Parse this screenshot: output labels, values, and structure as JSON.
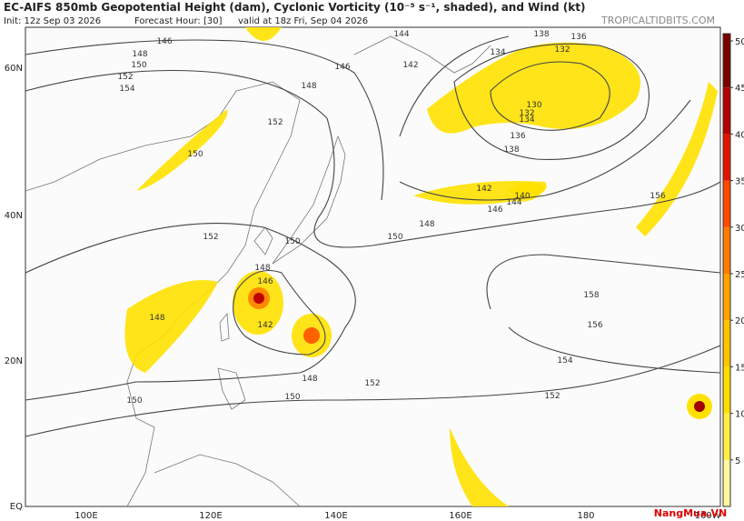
{
  "header": {
    "title": "EC-AIFS 850mb Geopotential Height (dam), Cyclonic Vorticity (10⁻⁵ s⁻¹, shaded), and Wind (kt)",
    "init": "Init: 12z Sep 03 2026",
    "forecast_hour": "Forecast Hour: [30]",
    "valid": "valid at 18z Fri, Sep 04 2026",
    "source": "TROPICALTIDBITS.COM"
  },
  "map": {
    "lat_labels": [
      "60N",
      "40N",
      "20N",
      "EQ"
    ],
    "lon_labels": [
      "100E",
      "120E",
      "140E",
      "160E",
      "180",
      "160W"
    ],
    "contour_labels": [
      146,
      148,
      150,
      152,
      154,
      146,
      148,
      152,
      150,
      152,
      150,
      150,
      148,
      146,
      142,
      148,
      150,
      152,
      144,
      142,
      138,
      136,
      134,
      132,
      130,
      132,
      134,
      136,
      138,
      140,
      142,
      144,
      146,
      148,
      156,
      158,
      156,
      154,
      152,
      148,
      150
    ]
  },
  "colorbar": {
    "ticks": [
      5,
      10,
      15,
      20,
      25,
      30,
      35,
      40,
      45,
      50
    ],
    "colors": [
      "#fff7a0",
      "#ffee44",
      "#ffdd00",
      "#ffc400",
      "#ffa200",
      "#ff7b00",
      "#ff4a00",
      "#e41400",
      "#b40000",
      "#7a0000"
    ]
  },
  "watermark": "NangMua.VN"
}
